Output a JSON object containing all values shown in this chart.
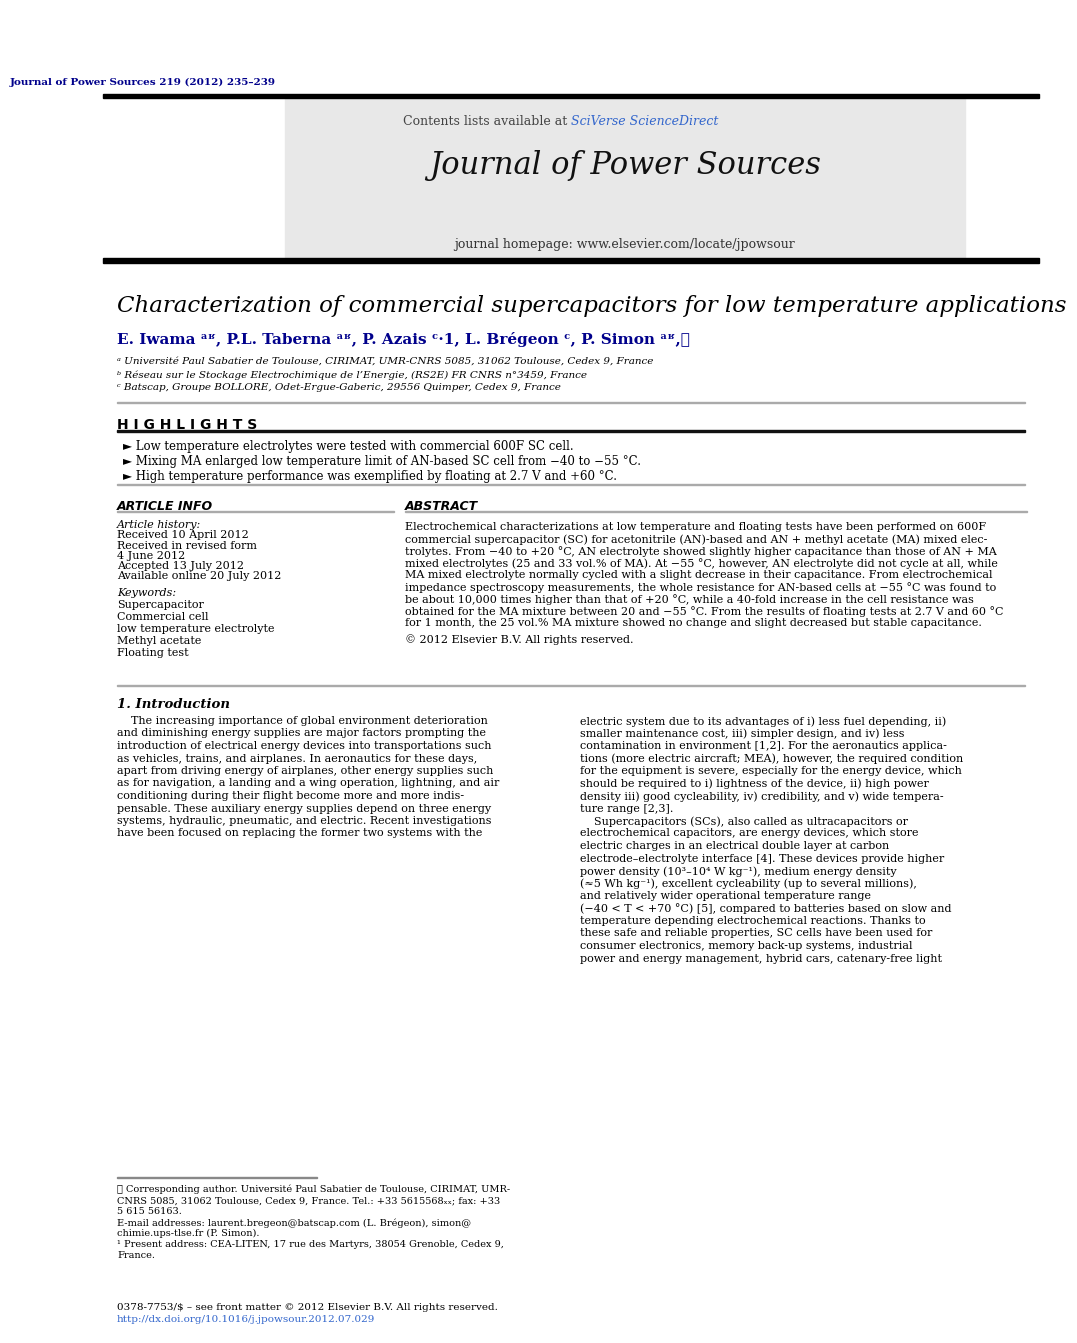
{
  "page_title_journal": "Journal of Power Sources 219 (2012) 235–239",
  "journal_name": "Journal of Power Sources",
  "journal_homepage": "journal homepage: www.elsevier.com/locate/jpowsour",
  "contents_line_1": "Contents lists available at ",
  "contents_line_2": "SciVerse ScienceDirect",
  "paper_title": "Characterization of commercial supercapacitors for low temperature applications",
  "author_line": "E. Iwama ᵃʶ, P.L. Taberna ᵃʶ, P. Azais ᶜ·1, L. Brégeon ᶜ, P. Simon ᵃʶ,⋆",
  "affiliation_a": "ᵃ Université Paul Sabatier de Toulouse, CIRIMAT, UMR-CNRS 5085, 31062 Toulouse, Cedex 9, France",
  "affiliation_b": "ᵇ Réseau sur le Stockage Electrochimique de l’Energie, (RS2E) FR CNRS n°3459, France",
  "affiliation_c": "ᶜ Batscap, Groupe BOLLORE, Odet-Ergue-Gaberic, 29556 Quimper, Cedex 9, France",
  "highlights_title": "H I G H L I G H T S",
  "highlight_1": "Low temperature electrolytes were tested with commercial 600F SC cell.",
  "highlight_2": "Mixing MA enlarged low temperature limit of AN-based SC cell from −40 to −55 °C.",
  "highlight_3": "High temperature performance was exemplified by floating at 2.7 V and +60 °C.",
  "article_info_title": "ARTICLE INFO",
  "article_history_title": "Article history:",
  "received": "Received 10 April 2012",
  "revised_1": "Received in revised form",
  "revised_2": "4 June 2012",
  "accepted": "Accepted 13 July 2012",
  "available": "Available online 20 July 2012",
  "keywords_title": "Keywords:",
  "keywords": [
    "Supercapacitor",
    "Commercial cell",
    "low temperature electrolyte",
    "Methyl acetate",
    "Floating test"
  ],
  "abstract_title": "ABSTRACT",
  "abstract_lines": [
    "Electrochemical characterizations at low temperature and floating tests have been performed on 600F",
    "commercial supercapacitor (SC) for acetonitrile (AN)-based and AN + methyl acetate (MA) mixed elec-",
    "trolytes. From −40 to +20 °C, AN electrolyte showed slightly higher capacitance than those of AN + MA",
    "mixed electrolytes (25 and 33 vol.% of MA). At −55 °C, however, AN electrolyte did not cycle at all, while",
    "MA mixed electrolyte normally cycled with a slight decrease in their capacitance. From electrochemical",
    "impedance spectroscopy measurements, the whole resistance for AN-based cells at −55 °C was found to",
    "be about 10,000 times higher than that of +20 °C, while a 40-fold increase in the cell resistance was",
    "obtained for the MA mixture between 20 and −55 °C. From the results of floating tests at 2.7 V and 60 °C",
    "for 1 month, the 25 vol.% MA mixture showed no change and slight decreased but stable capacitance."
  ],
  "copyright": "© 2012 Elsevier B.V. All rights reserved.",
  "intro_title": "1. Introduction",
  "intro_col1_lines": [
    "    The increasing importance of global environment deterioration",
    "and diminishing energy supplies are major factors prompting the",
    "introduction of electrical energy devices into transportations such",
    "as vehicles, trains, and airplanes. In aeronautics for these days,",
    "apart from driving energy of airplanes, other energy supplies such",
    "as for navigation, a landing and a wing operation, lightning, and air",
    "conditioning during their flight become more and more indis-",
    "pensable. These auxiliary energy supplies depend on three energy",
    "systems, hydraulic, pneumatic, and electric. Recent investigations",
    "have been focused on replacing the former two systems with the"
  ],
  "intro_col2_lines": [
    "electric system due to its advantages of i) less fuel depending, ii)",
    "smaller maintenance cost, iii) simpler design, and iv) less",
    "contamination in environment [1,2]. For the aeronautics applica-",
    "tions (more electric aircraft; MEA), however, the required condition",
    "for the equipment is severe, especially for the energy device, which",
    "should be required to i) lightness of the device, ii) high power",
    "density iii) good cycleability, iv) credibility, and v) wide tempera-",
    "ture range [2,3].",
    "    Supercapacitors (SCs), also called as ultracapacitors or",
    "electrochemical capacitors, are energy devices, which store",
    "electric charges in an electrical double layer at carbon",
    "electrode–electrolyte interface [4]. These devices provide higher",
    "power density (10³–10⁴ W kg⁻¹), medium energy density",
    "(≈5 Wh kg⁻¹), excellent cycleability (up to several millions),",
    "and relatively wider operational temperature range",
    "(−40 < T < +70 °C) [5], compared to batteries based on slow and",
    "temperature depending electrochemical reactions. Thanks to",
    "these safe and reliable properties, SC cells have been used for",
    "consumer electronics, memory back-up systems, industrial",
    "power and energy management, hybrid cars, catenary-free light"
  ],
  "footnote_lines": [
    "⋆ Corresponding author. Université Paul Sabatier de Toulouse, CIRIMAT, UMR-",
    "CNRS 5085, 31062 Toulouse, Cedex 9, France. Tel.: +33 5615568ₓₓ; fax: +33",
    "5 615 56163.",
    "E-mail addresses: laurent.bregeon@batscap.com (L. Brégeon), simon@",
    "chimie.ups-tlse.fr (P. Simon).",
    "¹ Present address: CEA-LITEN, 17 rue des Martyrs, 38054 Grenoble, Cedex 9,",
    "France."
  ],
  "issn_line": "0378-7753/$ – see front matter © 2012 Elsevier B.V. All rights reserved.",
  "doi_line": "http://dx.doi.org/10.1016/j.jpowsour.2012.07.029",
  "bg_color": "#ffffff",
  "header_bg": "#e8e8e8",
  "dark_blue": "#00008B",
  "orange_color": "#FF6600",
  "sciverse_color": "#3366CC",
  "text_color": "#000000"
}
